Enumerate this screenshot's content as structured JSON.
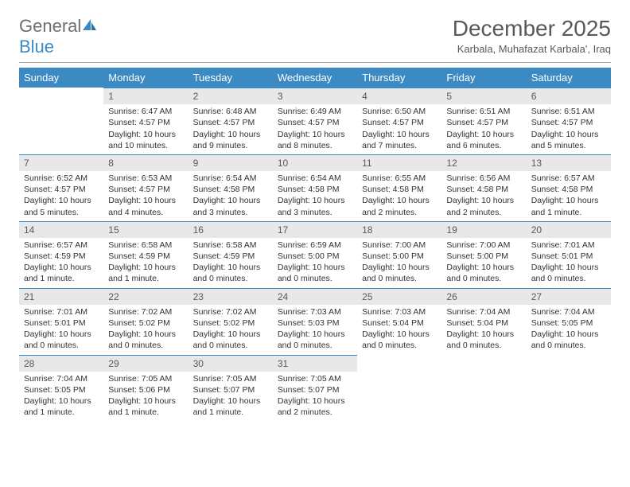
{
  "brand": {
    "name_a": "General",
    "name_b": "Blue",
    "sail_color": "#3b8ac4",
    "text_color": "#6e6e6e"
  },
  "title": "December 2025",
  "location": "Karbala, Muhafazat Karbala', Iraq",
  "colors": {
    "header_bg": "#3b8ac4",
    "header_fg": "#ffffff",
    "day_bg": "#e8e8e8",
    "day_fg": "#595959",
    "border": "#3b8ac4",
    "text": "#333333"
  },
  "weekdays": [
    "Sunday",
    "Monday",
    "Tuesday",
    "Wednesday",
    "Thursday",
    "Friday",
    "Saturday"
  ],
  "weeks": [
    [
      null,
      {
        "n": "1",
        "sr": "6:47 AM",
        "ss": "4:57 PM",
        "dl": "10 hours and 10 minutes."
      },
      {
        "n": "2",
        "sr": "6:48 AM",
        "ss": "4:57 PM",
        "dl": "10 hours and 9 minutes."
      },
      {
        "n": "3",
        "sr": "6:49 AM",
        "ss": "4:57 PM",
        "dl": "10 hours and 8 minutes."
      },
      {
        "n": "4",
        "sr": "6:50 AM",
        "ss": "4:57 PM",
        "dl": "10 hours and 7 minutes."
      },
      {
        "n": "5",
        "sr": "6:51 AM",
        "ss": "4:57 PM",
        "dl": "10 hours and 6 minutes."
      },
      {
        "n": "6",
        "sr": "6:51 AM",
        "ss": "4:57 PM",
        "dl": "10 hours and 5 minutes."
      }
    ],
    [
      {
        "n": "7",
        "sr": "6:52 AM",
        "ss": "4:57 PM",
        "dl": "10 hours and 5 minutes."
      },
      {
        "n": "8",
        "sr": "6:53 AM",
        "ss": "4:57 PM",
        "dl": "10 hours and 4 minutes."
      },
      {
        "n": "9",
        "sr": "6:54 AM",
        "ss": "4:58 PM",
        "dl": "10 hours and 3 minutes."
      },
      {
        "n": "10",
        "sr": "6:54 AM",
        "ss": "4:58 PM",
        "dl": "10 hours and 3 minutes."
      },
      {
        "n": "11",
        "sr": "6:55 AM",
        "ss": "4:58 PM",
        "dl": "10 hours and 2 minutes."
      },
      {
        "n": "12",
        "sr": "6:56 AM",
        "ss": "4:58 PM",
        "dl": "10 hours and 2 minutes."
      },
      {
        "n": "13",
        "sr": "6:57 AM",
        "ss": "4:58 PM",
        "dl": "10 hours and 1 minute."
      }
    ],
    [
      {
        "n": "14",
        "sr": "6:57 AM",
        "ss": "4:59 PM",
        "dl": "10 hours and 1 minute."
      },
      {
        "n": "15",
        "sr": "6:58 AM",
        "ss": "4:59 PM",
        "dl": "10 hours and 1 minute."
      },
      {
        "n": "16",
        "sr": "6:58 AM",
        "ss": "4:59 PM",
        "dl": "10 hours and 0 minutes."
      },
      {
        "n": "17",
        "sr": "6:59 AM",
        "ss": "5:00 PM",
        "dl": "10 hours and 0 minutes."
      },
      {
        "n": "18",
        "sr": "7:00 AM",
        "ss": "5:00 PM",
        "dl": "10 hours and 0 minutes."
      },
      {
        "n": "19",
        "sr": "7:00 AM",
        "ss": "5:00 PM",
        "dl": "10 hours and 0 minutes."
      },
      {
        "n": "20",
        "sr": "7:01 AM",
        "ss": "5:01 PM",
        "dl": "10 hours and 0 minutes."
      }
    ],
    [
      {
        "n": "21",
        "sr": "7:01 AM",
        "ss": "5:01 PM",
        "dl": "10 hours and 0 minutes."
      },
      {
        "n": "22",
        "sr": "7:02 AM",
        "ss": "5:02 PM",
        "dl": "10 hours and 0 minutes."
      },
      {
        "n": "23",
        "sr": "7:02 AM",
        "ss": "5:02 PM",
        "dl": "10 hours and 0 minutes."
      },
      {
        "n": "24",
        "sr": "7:03 AM",
        "ss": "5:03 PM",
        "dl": "10 hours and 0 minutes."
      },
      {
        "n": "25",
        "sr": "7:03 AM",
        "ss": "5:04 PM",
        "dl": "10 hours and 0 minutes."
      },
      {
        "n": "26",
        "sr": "7:04 AM",
        "ss": "5:04 PM",
        "dl": "10 hours and 0 minutes."
      },
      {
        "n": "27",
        "sr": "7:04 AM",
        "ss": "5:05 PM",
        "dl": "10 hours and 0 minutes."
      }
    ],
    [
      {
        "n": "28",
        "sr": "7:04 AM",
        "ss": "5:05 PM",
        "dl": "10 hours and 1 minute."
      },
      {
        "n": "29",
        "sr": "7:05 AM",
        "ss": "5:06 PM",
        "dl": "10 hours and 1 minute."
      },
      {
        "n": "30",
        "sr": "7:05 AM",
        "ss": "5:07 PM",
        "dl": "10 hours and 1 minute."
      },
      {
        "n": "31",
        "sr": "7:05 AM",
        "ss": "5:07 PM",
        "dl": "10 hours and 2 minutes."
      },
      null,
      null,
      null
    ]
  ],
  "labels": {
    "sunrise": "Sunrise:",
    "sunset": "Sunset:",
    "daylight": "Daylight:"
  }
}
